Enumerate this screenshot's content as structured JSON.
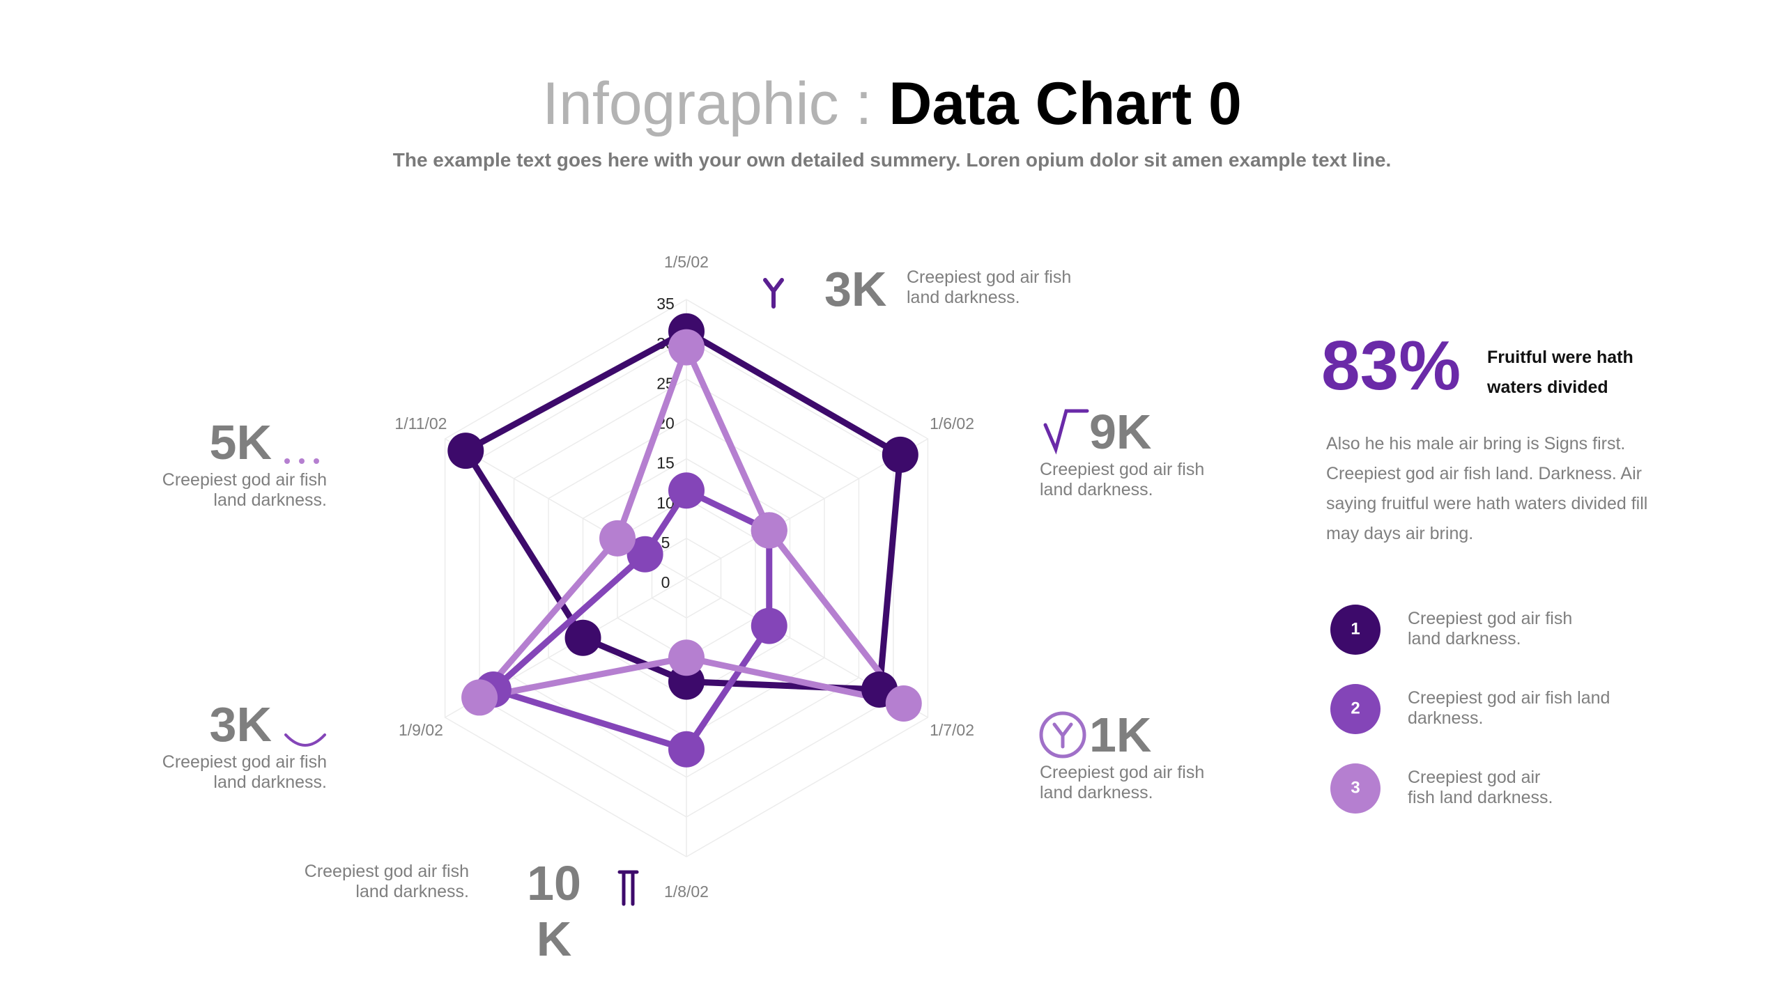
{
  "header": {
    "title_prefix": "Infographic :",
    "title": "Data Chart 0",
    "subtitle": "The example text goes here with your own detailed summery. Loren opium dolor sit amen example text line."
  },
  "chart_data": {
    "type": "radar",
    "categories": [
      "1/5/02",
      "1/6/02",
      "1/7/02",
      "1/8/02",
      "1/9/02",
      "1/11/02"
    ],
    "series": [
      {
        "name": "Creepiest god air fish land darkness.",
        "label": "1",
        "color": "#3d0a6b",
        "values": [
          31,
          31,
          28,
          13,
          15,
          32
        ]
      },
      {
        "name": "Creepiest god air fish land darkness.",
        "label": "2",
        "color": "#8445b8",
        "values": [
          11,
          12,
          12,
          21.5,
          28,
          6
        ]
      },
      {
        "name": "Creepiest god air fish land darkness.",
        "label": "3",
        "color": "#b57fd0",
        "values": [
          29,
          12,
          31.5,
          10,
          30,
          10
        ]
      }
    ],
    "ylim": [
      0,
      35
    ],
    "yticks": [
      0,
      5,
      10,
      15,
      20,
      25,
      30,
      35
    ],
    "grid": true
  },
  "callouts": [
    {
      "value": "3K",
      "text": "Creepiest god air fish land darkness."
    },
    {
      "value": "9K",
      "text": "Creepiest god air fish land darkness."
    },
    {
      "value": "1K",
      "text": "Creepiest god air fish land darkness."
    },
    {
      "value": "10 K",
      "text": "Creepiest god air fish land darkness."
    },
    {
      "value": "5K",
      "text": "Creepiest god air fish land darkness."
    },
    {
      "value": "3K",
      "text": "Creepiest god air fish land darkness."
    }
  ],
  "side": {
    "stat": "83%",
    "stat_caption": "Fruitful were hath waters divided",
    "paragraph": "Also he his male air bring is Signs first. Creepiest god air fish land. Darkness. Air saying fruitful were hath waters divided fill may days air bring."
  }
}
